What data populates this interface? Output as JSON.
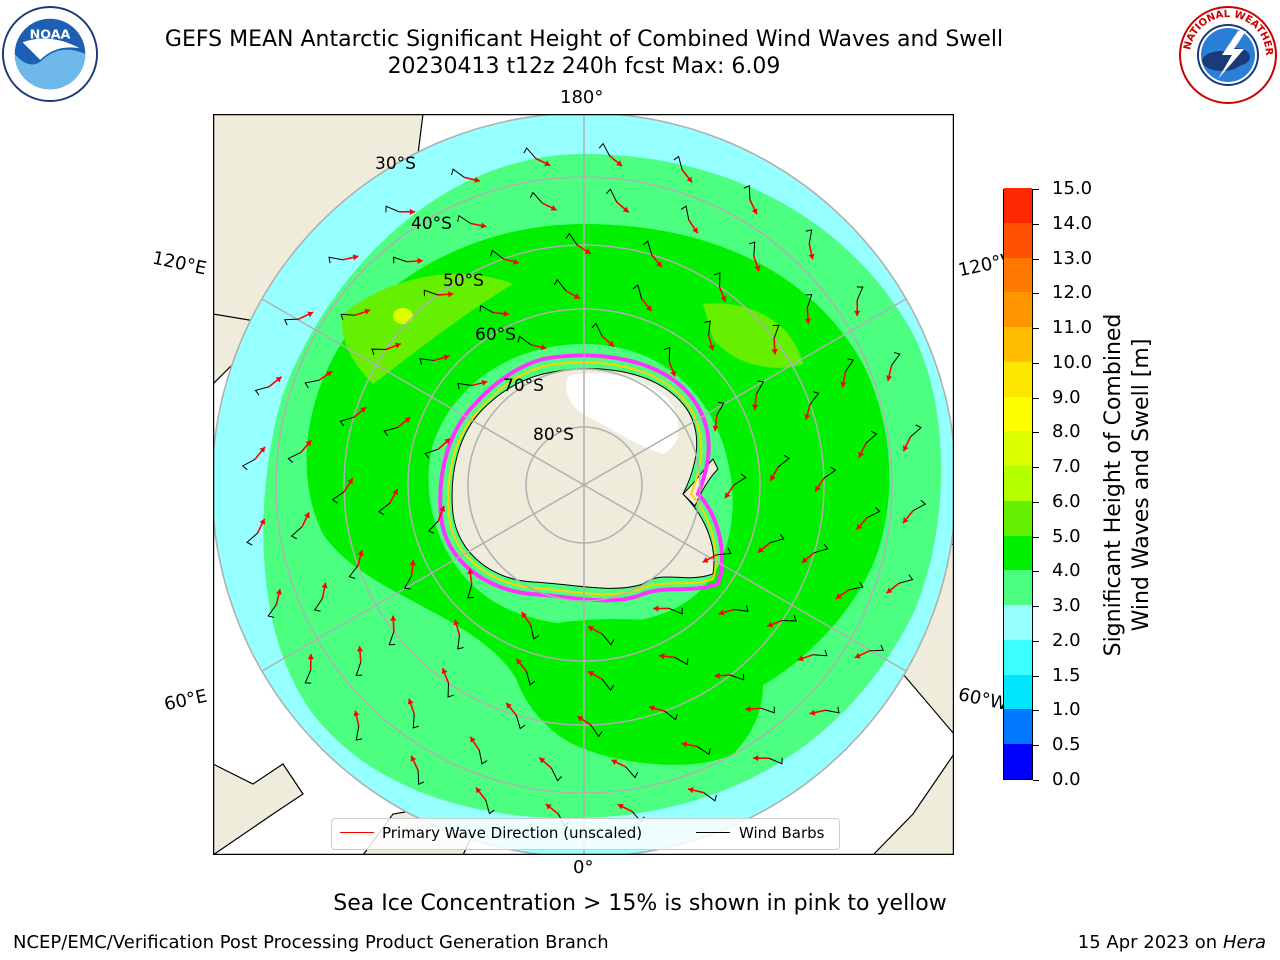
{
  "title": {
    "line1": "GEFS MEAN Antarctic Significant Height of Combined Wind Waves and Swell",
    "line2": "20230413 t12z 240h fcst   Max: 6.09"
  },
  "logos": {
    "left": "noaa-logo",
    "right": "national-weather-service-logo"
  },
  "map": {
    "projection": "south-polar-stereographic",
    "longitude_labels": {
      "top": "180°",
      "left_upper": "120°E",
      "right_upper": "120°W",
      "left_lower": "60°E",
      "right_lower": "60°W",
      "bottom": "0°"
    },
    "latitude_labels": [
      "30°S",
      "40°S",
      "50°S",
      "60°S",
      "70°S",
      "80°S"
    ],
    "colors": {
      "land": "#efecdc",
      "ice_shelf": "#ffffff",
      "graticule": "#b0b0b0",
      "wave_arrow": "#ff0000",
      "wind_barb": "#000000",
      "sea_ice_edge": "#ff33ff"
    }
  },
  "colorbar": {
    "label_line1": "Significant Height of Combined",
    "label_line2": "Wind Waves and Swell [m]",
    "ticks": [
      "0.0",
      "0.5",
      "1.0",
      "1.5",
      "2.0",
      "3.0",
      "4.0",
      "5.0",
      "6.0",
      "7.0",
      "8.0",
      "9.0",
      "10.0",
      "11.0",
      "12.0",
      "13.0",
      "14.0",
      "15.0"
    ],
    "colors": [
      "#0000ff",
      "#0078ff",
      "#00e6ff",
      "#3cffff",
      "#96ffff",
      "#4dff80",
      "#00f000",
      "#64f000",
      "#b4ff00",
      "#dcff00",
      "#ffff00",
      "#ffe600",
      "#ffbe00",
      "#ff9600",
      "#ff7800",
      "#ff5000",
      "#ff2800",
      "#ff0000"
    ]
  },
  "legend": {
    "items": [
      {
        "label": "Primary Wave Direction (unscaled)",
        "color": "#ff0000"
      },
      {
        "label": "Wind Barbs",
        "color": "#000000"
      }
    ]
  },
  "footnote": "Sea Ice Concentration > 15% is shown in pink to yellow",
  "credit": "NCEP/EMC/Verification Post Processing Product Generation Branch",
  "date": {
    "text": "15 Apr 2023 on ",
    "machine": "Hera"
  }
}
